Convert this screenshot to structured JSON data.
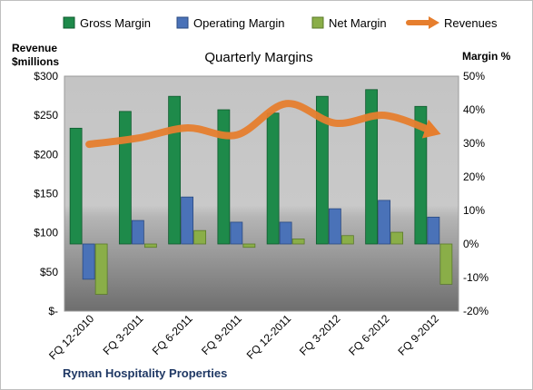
{
  "chart_data": {
    "type": "bar",
    "title": "Quarterly Margins",
    "company": "Ryman Hospitality Properties",
    "categories": [
      "FQ 12-2010",
      "FQ 3-2011",
      "FQ 6-2011",
      "FQ 9-2011",
      "FQ 12-2011",
      "FQ 3-2012",
      "FQ 6-2012",
      "FQ 9-2012"
    ],
    "left_axis": {
      "label_line1": "Revenue",
      "label_line2": "$millions",
      "ticks": [
        "$-",
        "$50",
        "$100",
        "$150",
        "$200",
        "$250",
        "$300"
      ],
      "ylim": [
        0,
        300
      ]
    },
    "right_axis": {
      "label": "Margin %",
      "ticks": [
        "-20%",
        "-10%",
        "0%",
        "10%",
        "20%",
        "30%",
        "40%",
        "50%"
      ],
      "ylim": [
        -20,
        50
      ]
    },
    "series": [
      {
        "name": "Gross Margin",
        "axis": "right",
        "color": "#1e8a4a",
        "values": [
          34.5,
          39.5,
          44,
          40,
          39,
          44,
          46,
          41
        ]
      },
      {
        "name": "Operating Margin",
        "axis": "right",
        "color": "#4a72b8",
        "values": [
          -10.5,
          7,
          14,
          6.5,
          6.5,
          10.5,
          13,
          8
        ]
      },
      {
        "name": "Net Margin",
        "axis": "right",
        "color": "#8aae48",
        "values": [
          -15,
          -1,
          4,
          -1,
          1.5,
          2.5,
          3.5,
          -12
        ]
      },
      {
        "name": "Revenues",
        "axis": "left",
        "color": "#e67e2e",
        "values": [
          213,
          221,
          234,
          225,
          265,
          240,
          250,
          229
        ]
      }
    ],
    "legend": {
      "position": "top"
    },
    "grid": false
  }
}
